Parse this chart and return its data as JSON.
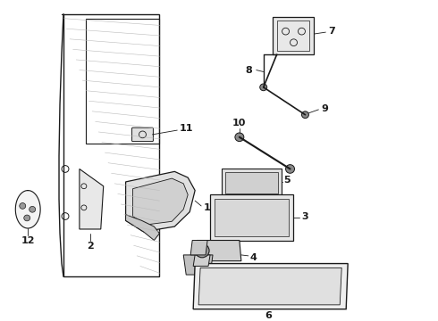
{
  "background_color": "#ffffff",
  "fig_width": 4.9,
  "fig_height": 3.6,
  "dpi": 100,
  "dark": "#1a1a1a",
  "gray": "#888888",
  "light_gray": "#cccccc",
  "mid_gray": "#aaaaaa"
}
